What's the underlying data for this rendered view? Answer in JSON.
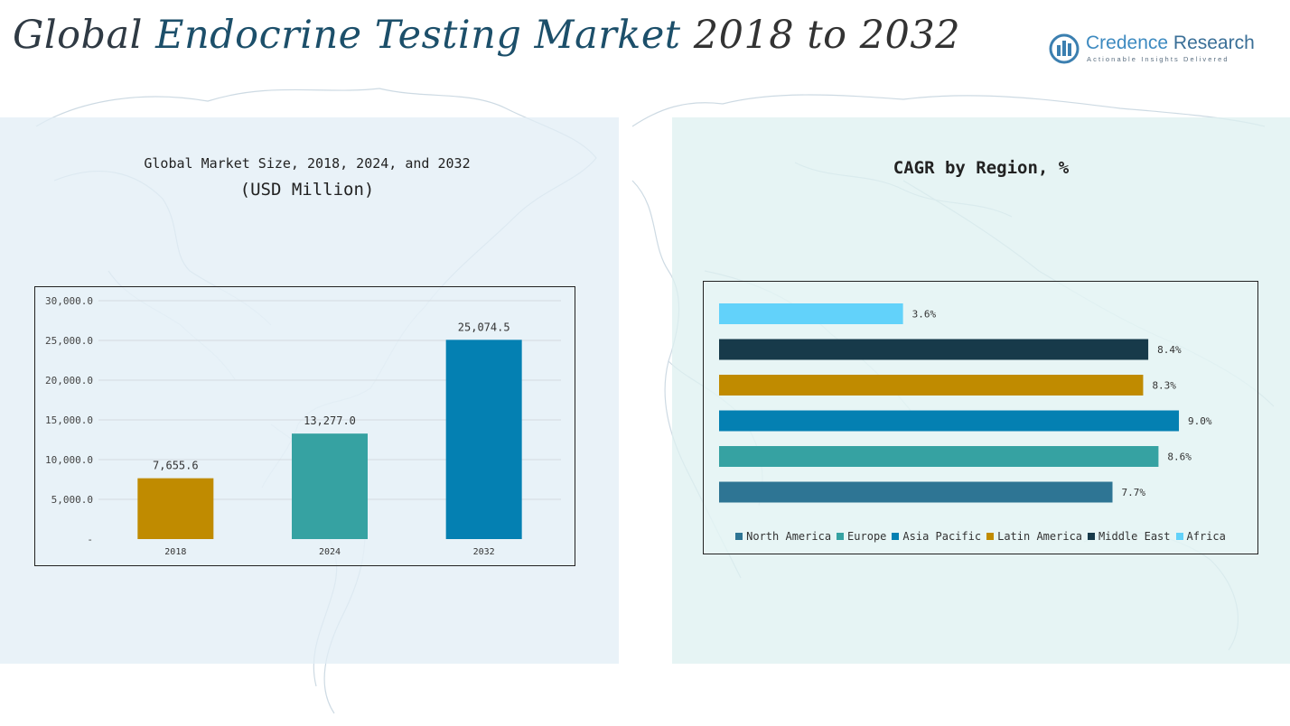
{
  "header": {
    "title_part1": "Global ",
    "title_part2": "Endocrine Testing Market",
    "title_part3": " 2018 to 2032"
  },
  "logo": {
    "name_a": "Credence",
    "name_b": " Research",
    "tagline": "Actionable Insights Delivered"
  },
  "colors": {
    "gold": "#C08B00",
    "teal": "#36A2A2",
    "blue": "#0480B2",
    "dark": "#173A4A",
    "light_blue": "#62D2FA",
    "steel": "#2E7594"
  },
  "chart_data": [
    {
      "type": "bar",
      "title": "Global Market Size, 2018, 2024, and 2032",
      "subtitle": "(USD Million)",
      "categories": [
        "2018",
        "2024",
        "2032"
      ],
      "values": [
        7655.6,
        13277.0,
        25074.5
      ],
      "value_labels": [
        "7,655.6",
        "13,277.0",
        "25,074.5"
      ],
      "bar_colors": [
        "#C08B00",
        "#36A2A2",
        "#0480B2"
      ],
      "ylim": [
        0,
        30000
      ],
      "yticks": [
        0,
        5000,
        10000,
        15000,
        20000,
        25000,
        30000
      ],
      "ytick_labels": [
        "-",
        "5,000.0",
        "10,000.0",
        "15,000.0",
        "20,000.0",
        "25,000.0",
        "30,000.0"
      ],
      "grid": true
    },
    {
      "type": "bar",
      "orientation": "horizontal",
      "title": "CAGR by Region, %",
      "series": [
        {
          "name": "North America",
          "value": 7.7,
          "label": "7.7%",
          "color": "#2E7594"
        },
        {
          "name": "Europe",
          "value": 8.6,
          "label": "8.6%",
          "color": "#36A2A2"
        },
        {
          "name": "Asia Pacific",
          "value": 9.0,
          "label": "9.0%",
          "color": "#0480B2"
        },
        {
          "name": "Latin America",
          "value": 8.3,
          "label": "8.3%",
          "color": "#C08B00"
        },
        {
          "name": "Middle East",
          "value": 8.4,
          "label": "8.4%",
          "color": "#173A4A"
        },
        {
          "name": "Africa",
          "value": 3.6,
          "label": "3.6%",
          "color": "#62D2FA"
        }
      ],
      "xlim": [
        0,
        9.3
      ],
      "legend_position": "bottom",
      "grid": false
    }
  ]
}
